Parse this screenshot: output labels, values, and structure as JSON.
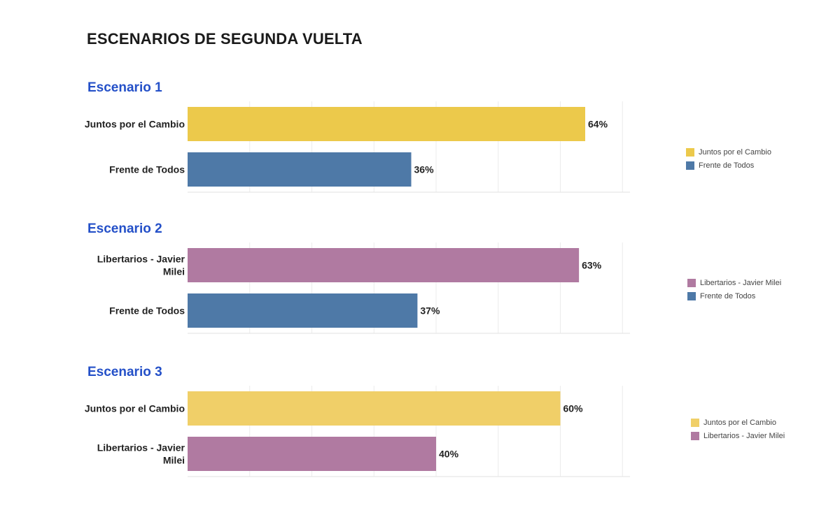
{
  "title": "ESCENARIOS DE SEGUNDA VUELTA",
  "colors": {
    "juntos": "#ecc94b",
    "frente": "#4e79a7",
    "libertarios": "#b07aa1",
    "scenario_title": "#2450c8"
  },
  "chart_data": [
    {
      "type": "bar",
      "orientation": "horizontal",
      "title": "Escenario 1",
      "categories": [
        "Juntos por el Cambio",
        "Frente de Todos"
      ],
      "values": [
        64,
        36
      ],
      "value_labels": [
        "64%",
        "36%"
      ],
      "colors": [
        "#ecc94b",
        "#4e79a7"
      ],
      "grid": true,
      "legend": {
        "position": "right",
        "items": [
          {
            "label": "Juntos por el Cambio",
            "color": "#ecc94b"
          },
          {
            "label": "Frente de Todos",
            "color": "#4e79a7"
          }
        ]
      }
    },
    {
      "type": "bar",
      "orientation": "horizontal",
      "title": "Escenario 2",
      "categories": [
        "Libertarios - Javier Milei",
        "Frente de Todos"
      ],
      "values": [
        63,
        37
      ],
      "value_labels": [
        "63%",
        "37%"
      ],
      "colors": [
        "#b07aa1",
        "#4e79a7"
      ],
      "grid": true,
      "legend": {
        "position": "right",
        "items": [
          {
            "label": "Libertarios - Javier Milei",
            "color": "#b07aa1"
          },
          {
            "label": "Frente de Todos",
            "color": "#4e79a7"
          }
        ]
      }
    },
    {
      "type": "bar",
      "orientation": "horizontal",
      "title": "Escenario 3",
      "categories": [
        "Juntos por el Cambio",
        "Libertarios - Javier Milei"
      ],
      "values": [
        60,
        40
      ],
      "value_labels": [
        "60%",
        "40%"
      ],
      "colors": [
        "#f0cf68",
        "#b07aa1"
      ],
      "grid": true,
      "legend": {
        "position": "right",
        "items": [
          {
            "label": "Juntos por el Cambio",
            "color": "#f0cf68"
          },
          {
            "label": "Libertarios - Javier Milei",
            "color": "#b07aa1"
          }
        ]
      }
    }
  ]
}
